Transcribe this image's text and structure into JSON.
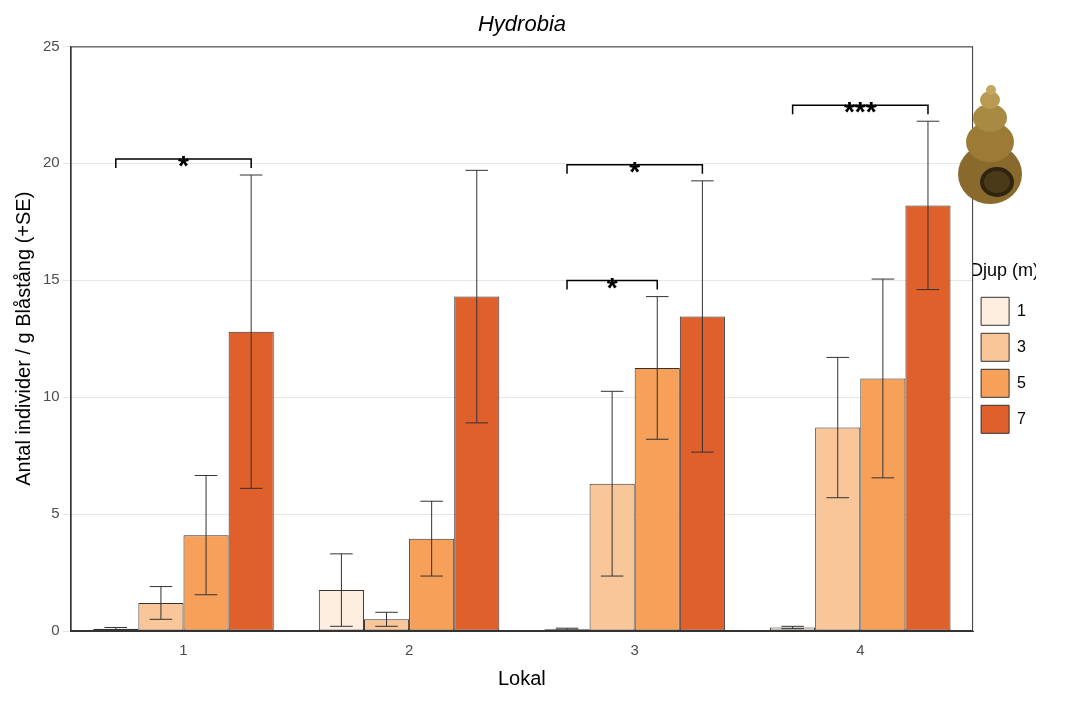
{
  "chart_data": {
    "type": "bar",
    "title": "Hydrobia",
    "x_label": "Lokal",
    "y_label": "Antal individer / g Blåstång (+SE)",
    "legend_title": "Djup (m)",
    "categories": [
      "1",
      "2",
      "3",
      "4"
    ],
    "series": [
      {
        "name": "1",
        "color": "#fdeee0",
        "values": [
          0.1,
          1.75,
          0.08,
          0.15
        ],
        "se": [
          0.05,
          1.55,
          0.04,
          0.05
        ]
      },
      {
        "name": "3",
        "color": "#f9c69a",
        "values": [
          1.2,
          0.5,
          6.3,
          8.7
        ],
        "se": [
          0.7,
          0.3,
          3.95,
          3.0
        ]
      },
      {
        "name": "5",
        "color": "#f6a05a",
        "values": [
          4.1,
          3.95,
          11.25,
          10.8
        ],
        "se": [
          2.55,
          1.6,
          3.05,
          4.25
        ]
      },
      {
        "name": "7",
        "color": "#e0602b",
        "values": [
          12.8,
          14.3,
          13.45,
          18.2
        ],
        "se": [
          6.7,
          5.4,
          5.8,
          3.6
        ]
      }
    ],
    "annotations": [
      {
        "category": "1",
        "from": "1",
        "to": "7",
        "label": "*"
      },
      {
        "category": "3",
        "from": "1",
        "to": "5",
        "label": "*"
      },
      {
        "category": "3",
        "from": "1",
        "to": "7",
        "label": "*"
      },
      {
        "category": "4",
        "from": "1",
        "to": "7",
        "label": "***"
      }
    ],
    "ylim": [
      0,
      25
    ],
    "yticks": [
      0,
      5,
      10,
      15,
      20,
      25
    ],
    "grid": true,
    "legend": "right"
  }
}
